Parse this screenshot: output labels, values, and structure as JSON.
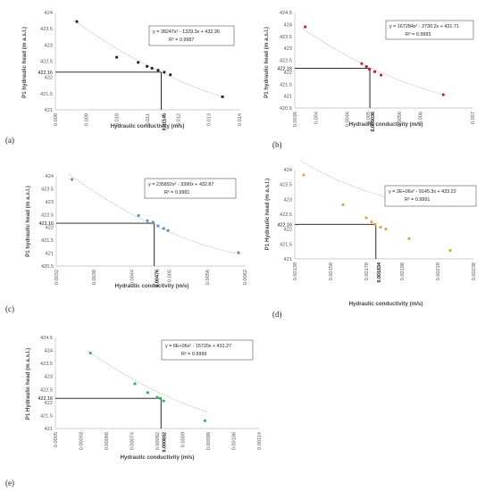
{
  "chart_data": [
    {
      "type": "scatter",
      "panel_label": "(a)",
      "xlabel": "Hydraulic conductivity (m/s)",
      "ylabel": "P1 hydraulic head (m a.s.l.)",
      "xlim": [
        0.008,
        0.014
      ],
      "ylim": [
        421,
        424
      ],
      "xticks": [
        "0.008",
        "0.009",
        "0.010",
        "0.011",
        "0.012",
        "0.013",
        "0.014"
      ],
      "yticks": [
        "421",
        "421.5",
        "422",
        "422.5",
        "423",
        "423.5",
        "424"
      ],
      "equation": "y = 38247x² - 1329.3x + 432.36",
      "r2": "R² = 0.9987",
      "target_y": 422.16,
      "target_y_label": "422.16",
      "target_x": 0.01145,
      "target_x_label": "0.01145",
      "point_color": "#1a1a1a",
      "x": [
        0.0087,
        0.01,
        0.0107,
        0.01099,
        0.01115,
        0.01135,
        0.01155,
        0.01175,
        0.01345
      ],
      "y": [
        423.72,
        422.62,
        422.46,
        422.34,
        422.28,
        422.22,
        422.16,
        422.08,
        421.4
      ],
      "fit": [
        38247,
        -1329.3,
        432.36
      ]
    },
    {
      "type": "scatter",
      "panel_label": "(b)",
      "xlabel": "Hydraulic conductivity (m/s)",
      "ylabel": "P1 hydraulic head (m a.s.l.)",
      "xlim": [
        0.0036,
        0.007
      ],
      "ylim": [
        420.5,
        424.5
      ],
      "xticks": [
        "0.0036",
        "0.004",
        "0.0046",
        "0.005",
        "0.0056",
        "0.006",
        "0.007"
      ],
      "yticks": [
        "420.5",
        "421",
        "421.5",
        "422",
        "422.5",
        "423",
        "423.5",
        "424",
        "424.5"
      ],
      "equation": "y = 167284x² - 2730.2x + 431.71",
      "r2": "R² = 0.9993",
      "target_y": 422.16,
      "target_y_label": "422.16",
      "target_x": 0.005036,
      "target_x_label": "0.005036",
      "point_color": "#c0182b",
      "x": [
        0.0038,
        0.00488,
        0.00497,
        0.00503,
        0.00513,
        0.00525,
        0.00644
      ],
      "y": [
        423.9,
        422.36,
        422.24,
        422.12,
        422.02,
        421.88,
        421.06
      ],
      "fit": [
        167284,
        -2730.2,
        431.71
      ]
    },
    {
      "type": "scatter",
      "panel_label": "(c)",
      "xlabel": "Hydraulic conductivity (m/s)",
      "ylabel": "P1 hydraulic head (m a.s.l.)",
      "xlim": [
        0.0032,
        0.0062
      ],
      "ylim": [
        420.5,
        424
      ],
      "xticks": [
        "0.0032",
        "0.0038",
        "0.0044",
        "0.005",
        "0.0056",
        "0.0062"
      ],
      "yticks": [
        "420.5",
        "421",
        "421.5",
        "422",
        "422.5",
        "423",
        "423.5",
        "424"
      ],
      "equation": "y = 235892x² - 3390x + 432.87",
      "r2": "R² = 0.9981",
      "target_y": 422.16,
      "target_y_label": "422.16",
      "target_x": 0.00476,
      "target_x_label": "0.00476",
      "point_color": "#5b8bb8",
      "x": [
        0.00345,
        0.00451,
        0.00465,
        0.00474,
        0.00482,
        0.00491,
        0.00498,
        0.0061
      ],
      "y": [
        423.86,
        422.46,
        422.26,
        422.2,
        422.06,
        421.96,
        421.88,
        421.02
      ],
      "fit": [
        235892,
        -3390,
        432.87
      ]
    },
    {
      "type": "scatter",
      "panel_label": "(d)",
      "xlabel": "Hydraulic conductivity (m/s)",
      "ylabel": "P1 Hydraulic head (m a.s.l.)",
      "xlim": [
        0.00138,
        0.00238
      ],
      "ylim": [
        421,
        424
      ],
      "xticks": [
        "0.00138",
        "0.00158",
        "0.00178",
        "0.00198",
        "0.00218",
        "0.00238"
      ],
      "yticks": [
        "421",
        "421.5",
        "422",
        "422.5",
        "423",
        "423.5",
        "424"
      ],
      "equation": "y = 2E+06x² - 9145.3x + 433.22",
      "r2": "R² = 0.9991",
      "target_y": 422.16,
      "target_y_label": "422.16",
      "target_x": 0.001834,
      "target_x_label": "0.001834",
      "point_color": "#e0a034",
      "x": [
        0.00143,
        0.00165,
        0.00178,
        0.00181,
        0.00183,
        0.00186,
        0.00189,
        0.00202,
        0.00225
      ],
      "y": [
        423.82,
        422.82,
        422.38,
        422.24,
        422.16,
        422.06,
        422.0,
        421.68,
        421.28
      ],
      "fit": [
        2000000,
        -9145.3,
        433.22
      ]
    },
    {
      "type": "scatter",
      "panel_label": "(e)",
      "xlabel": "Hydraulic conductivity (m/s)",
      "ylabel": "P1 Hydraulic head (m a.s.l.)",
      "xlim": [
        0.0005,
        0.00114
      ],
      "ylim": [
        421,
        424.5
      ],
      "xticks": [
        "0.0005",
        "0.00058",
        "0.00066",
        "0.00074",
        "0.00082",
        "0.0009",
        "0.00098",
        "0.00106",
        "0.00114"
      ],
      "yticks": [
        "421",
        "421.5",
        "422",
        "422.5",
        "423",
        "423.5",
        "424",
        "424.5"
      ],
      "equation": "y = 6E+06x² - 15720x + 431.27",
      "r2": "R² = 0.9999",
      "target_y": 422.16,
      "target_y_label": "422.16",
      "target_x": 0.000832,
      "target_x_label": "0.000832",
      "point_color": "#3aa35a",
      "x": [
        0.00061,
        0.00075,
        0.00079,
        0.00082,
        0.00083,
        0.00084,
        0.00097
      ],
      "y": [
        423.9,
        422.72,
        422.38,
        422.2,
        422.16,
        422.06,
        421.3
      ],
      "fit": [
        6000000,
        -15720,
        431.27
      ]
    }
  ]
}
